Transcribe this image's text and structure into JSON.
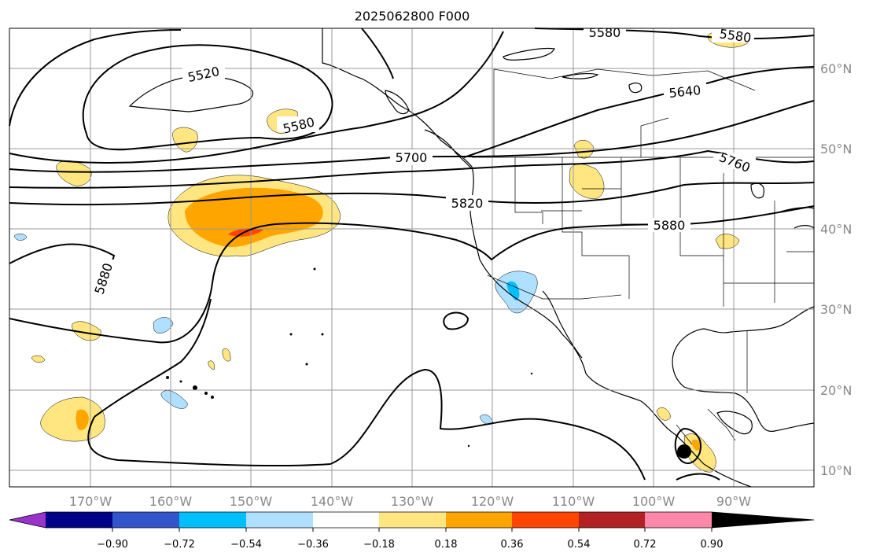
{
  "title": "2025062800 F000",
  "lon_labels": [
    "170°W",
    "160°W",
    "150°W",
    "140°W",
    "130°W",
    "120°W",
    "110°W",
    "100°W",
    "90°W"
  ],
  "lat_labels": [
    "60°N",
    "50°N",
    "40°N",
    "30°N",
    "20°N",
    "10°N"
  ],
  "contour_labels": [
    "5520",
    "5580",
    "5580",
    "5580",
    "5640",
    "5700",
    "5760",
    "5820",
    "5880",
    "5880"
  ],
  "colorbar": {
    "ticks": [
      "−0.90",
      "−0.72",
      "−0.54",
      "−0.36",
      "−0.18",
      "0.18",
      "0.36",
      "0.54",
      "0.72",
      "0.90"
    ],
    "colors": [
      "#9933cc",
      "#000088",
      "#3355cc",
      "#00bfff",
      "#b0e0ff",
      "#ffffff",
      "#ffe680",
      "#ffa500",
      "#ff4500",
      "#b22222",
      "#ff88aa"
    ]
  }
}
